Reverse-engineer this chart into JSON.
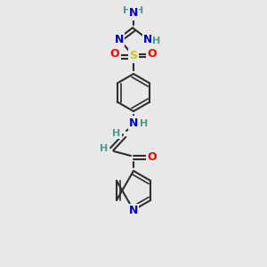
{
  "bg_color": "#e8e8e8",
  "bond_color": "#2d2d2d",
  "atom_colors": {
    "N": "#0000cc",
    "O": "#ff0000",
    "S": "#cccc00",
    "H": "#4a9a9a",
    "C": "#2d2d2d"
  },
  "figsize": [
    3.0,
    3.0
  ],
  "dpi": 100
}
